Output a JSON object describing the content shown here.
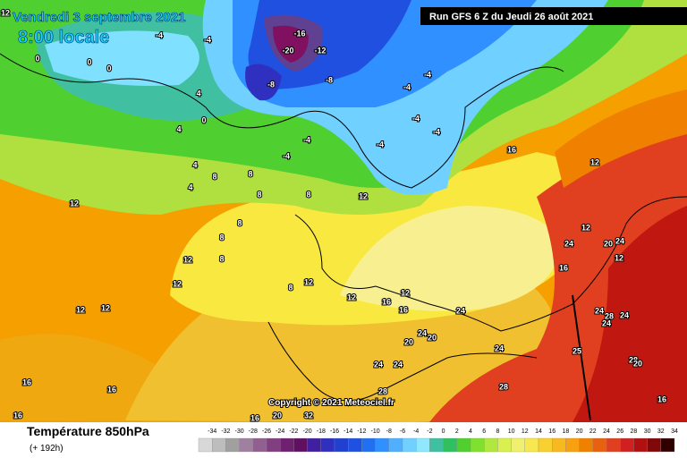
{
  "header": {
    "date": "Vendredi 3 septembre 2021",
    "time": "8:00 locale",
    "run": "Run GFS 6 Z du Jeudi 26 août 2021"
  },
  "map_labels": [
    "12",
    "-16",
    "-20",
    "-12",
    "-8",
    "-8",
    "-4",
    "-4",
    "0",
    "0",
    "0",
    "-4",
    "-4",
    "-4",
    "-4",
    "-4",
    "-4",
    "-4",
    "0",
    "4",
    "4",
    "4",
    "4",
    "8",
    "8",
    "8",
    "8",
    "8",
    "8",
    "8",
    "8",
    "12",
    "12",
    "16",
    "12",
    "12",
    "24",
    "20",
    "24",
    "12",
    "16",
    "12",
    "12",
    "12",
    "12",
    "12",
    "12",
    "12",
    "16",
    "16",
    "24",
    "24",
    "28",
    "24",
    "24",
    "20",
    "24",
    "20",
    "24",
    "25",
    "28",
    "20",
    "24",
    "24",
    "28",
    "28",
    "16",
    "16",
    "16",
    "16",
    "16",
    "20",
    "32"
  ],
  "copyright": "Copyright © 2021 Meteociel.fr",
  "footer": {
    "title": "Température 850hPa",
    "lead": "(+ 192h)"
  },
  "colorbar": {
    "ticks": [
      -34,
      -32,
      -30,
      -28,
      -26,
      -24,
      -22,
      -20,
      -18,
      -16,
      -14,
      -12,
      -10,
      -8,
      -6,
      -4,
      -2,
      0,
      2,
      4,
      6,
      8,
      10,
      12,
      14,
      16,
      18,
      20,
      22,
      24,
      26,
      28,
      30,
      32,
      34
    ],
    "colors": [
      "#d8d8d8",
      "#bdbdbd",
      "#a0a0a0",
      "#a080a0",
      "#906090",
      "#804080",
      "#702070",
      "#601060",
      "#4020a0",
      "#3030c0",
      "#2040d0",
      "#2050e0",
      "#2070f0",
      "#3090ff",
      "#50b0ff",
      "#70d0ff",
      "#90e8ff",
      "#40c0a0",
      "#30c060",
      "#50d030",
      "#80e030",
      "#b0e840",
      "#d8f050",
      "#f0f070",
      "#f8e850",
      "#f8d030",
      "#f8b820",
      "#f8a010",
      "#f08000",
      "#e86010",
      "#e04020",
      "#d02020",
      "#b01010",
      "#800808",
      "#300000"
    ]
  }
}
